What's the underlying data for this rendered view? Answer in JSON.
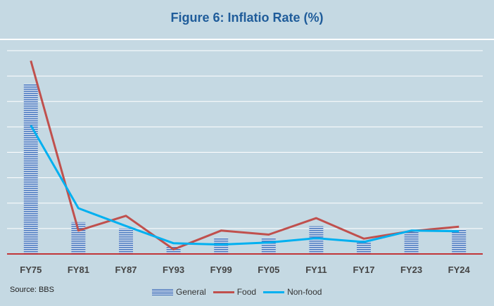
{
  "chart_data": {
    "type": "bar",
    "title": "Figure 6: Inflatio Rate (%)",
    "categories": [
      "FY75",
      "FY81",
      "FY87",
      "FY93",
      "FY99",
      "FY05",
      "FY11",
      "FY17",
      "FY23",
      "FY24"
    ],
    "ylim": [
      0,
      80
    ],
    "grid": true,
    "legend": "bottom",
    "series": [
      {
        "name": "General",
        "type": "bar",
        "color": "#3f6fb8",
        "values": [
          66.9,
          12.5,
          10.0,
          3.0,
          6.3,
          6.5,
          10.9,
          5.4,
          9.0,
          9.7
        ]
      },
      {
        "name": "Food",
        "type": "line",
        "color": "#c0504d",
        "values": [
          76.0,
          9.2,
          15.0,
          1.8,
          9.2,
          7.6,
          14.1,
          6.0,
          9.0,
          10.7
        ]
      },
      {
        "name": "Non-food",
        "type": "line",
        "color": "#00b0f0",
        "values": [
          50.6,
          18.0,
          11.0,
          4.2,
          3.7,
          4.5,
          6.2,
          4.7,
          9.2,
          8.9
        ]
      }
    ]
  },
  "source": "Source: BBS",
  "legend_labels": [
    "General",
    "Food",
    "Non-food"
  ]
}
